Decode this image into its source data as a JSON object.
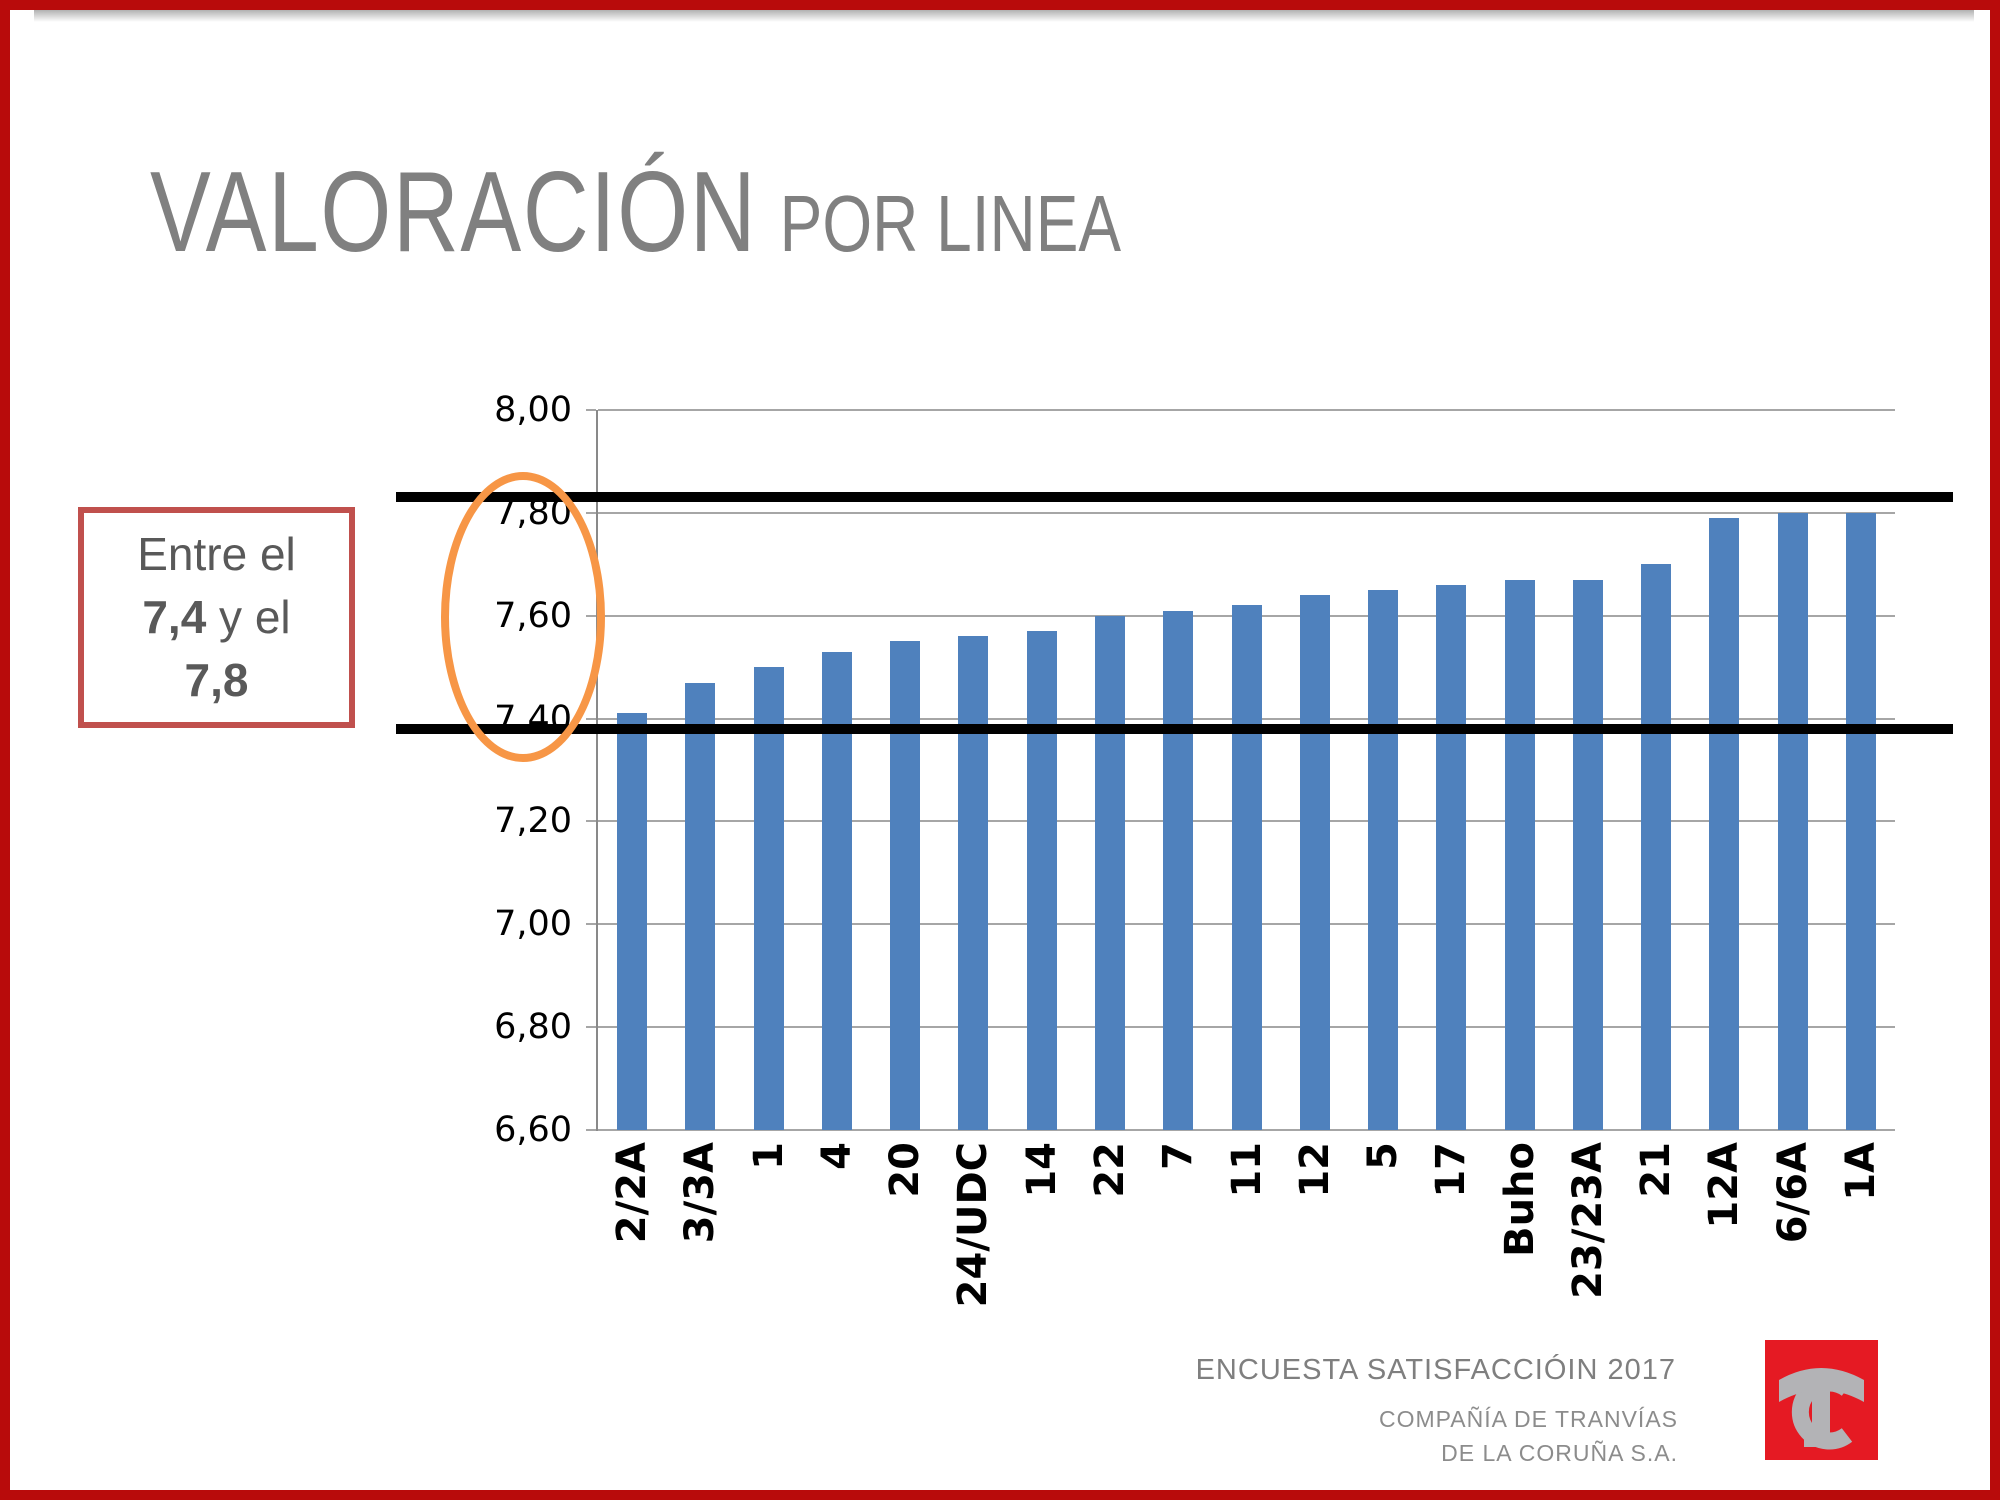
{
  "slide": {
    "title_main": "VALORACIÓN",
    "title_sub": "POR LINEA"
  },
  "callout": {
    "line1": "Entre el",
    "value1": "7,4",
    "line2_rest": " y el",
    "value2": "7,8"
  },
  "chart_data": {
    "type": "bar",
    "title": "Valoración por línea",
    "categories": [
      "2/2A",
      "3/3A",
      "1",
      "4",
      "20",
      "24/UDC",
      "14",
      "22",
      "7",
      "11",
      "12",
      "5",
      "17",
      "Buho",
      "23/23A",
      "21",
      "12A",
      "6/6A",
      "1A"
    ],
    "values": [
      7.41,
      7.47,
      7.5,
      7.53,
      7.55,
      7.56,
      7.57,
      7.6,
      7.61,
      7.62,
      7.64,
      7.65,
      7.66,
      7.67,
      7.67,
      7.7,
      7.79,
      7.8,
      7.8
    ],
    "xlabel": "",
    "ylabel": "",
    "ylim": [
      6.6,
      8.0
    ],
    "grid": true,
    "legend": "none",
    "y_ticks": [
      {
        "label": "8,00",
        "value": 8.0
      },
      {
        "label": "7,80",
        "value": 7.8
      },
      {
        "label": "7,60",
        "value": 7.6
      },
      {
        "label": "7,40",
        "value": 7.4
      },
      {
        "label": "7,20",
        "value": 7.2
      },
      {
        "label": "7,00",
        "value": 7.0
      },
      {
        "label": "6,80",
        "value": 6.8
      },
      {
        "label": "6,60",
        "value": 6.6
      }
    ],
    "reference_lines": [
      {
        "value": 7.83,
        "meaning": "upper bound of 7,4–7,8 band"
      },
      {
        "value": 7.38,
        "meaning": "lower bound of 7,4–7,8 band"
      }
    ],
    "annotation": {
      "shape": "ellipse",
      "highlights": "y-axis labels 7,40 to 7,80",
      "color": "#F79646"
    }
  },
  "footer": {
    "survey": "ENCUESTA SATISFACCIÓIN 2017",
    "company_line1": "COMPAÑÍA DE TRANVÍAS",
    "company_line2": "DE LA CORUÑA S.A."
  },
  "colors": {
    "bar": "#4F81BD",
    "grid": "#A6A6A6",
    "axis": "#898989",
    "black": "#000000",
    "orange": "#F79646",
    "slide_border": "#B80B0B",
    "callout_border": "#C0504D",
    "callout_text": "#595959",
    "title_gray": "#808080",
    "footer_gray": "#7F7F7F",
    "footer_gray2": "#8C8C8C",
    "logo_red": "#E51A23",
    "logo_gray": "#B3B3B6"
  }
}
